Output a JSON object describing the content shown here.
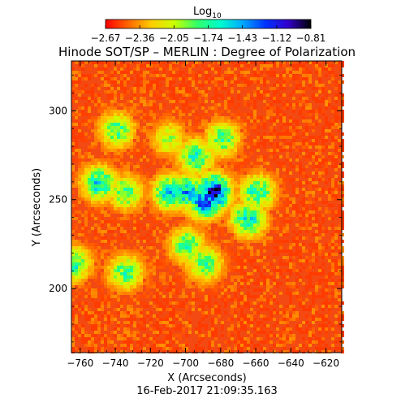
{
  "colorbar": {
    "label": "Log",
    "label_subscript": "10",
    "tick_labels": [
      "-2.67",
      "-2.36",
      "-2.05",
      "-1.74",
      "-1.43",
      "-1.12",
      "-0.81"
    ],
    "range": [
      -2.67,
      -0.81
    ],
    "colormap": [
      "#ff0000",
      "#ff6600",
      "#ffcc00",
      "#ccff00",
      "#33ff66",
      "#00ffcc",
      "#00aaff",
      "#0033ff",
      "#3300cc",
      "#000000"
    ]
  },
  "plot": {
    "title": "Hinode SOT/SP – MERLIN : Degree of Polarization",
    "xlabel": "X (Arcseconds)",
    "ylabel": "Y (Arcseconds)",
    "xlim": [
      -765,
      -611
    ],
    "ylim": [
      164,
      328
    ],
    "x_ticks": [
      -760,
      -740,
      -720,
      -700,
      -680,
      -660,
      -640,
      -620
    ],
    "y_ticks": [
      200,
      250,
      300
    ],
    "x_tick_labels": [
      "−760",
      "−740",
      "−720",
      "−700",
      "−680",
      "−660",
      "−640",
      "−620"
    ],
    "y_tick_labels": [
      "200",
      "250",
      "300"
    ],
    "timestamp": "16-Feb-2017 21:09:35.163",
    "background_level": -2.55,
    "features": [
      {
        "x": -685,
        "y": 255,
        "level": -1.0
      },
      {
        "x": -690,
        "y": 250,
        "level": -1.3
      },
      {
        "x": -700,
        "y": 255,
        "level": -1.5
      },
      {
        "x": -710,
        "y": 255,
        "level": -1.6
      },
      {
        "x": -695,
        "y": 275,
        "level": -1.7
      },
      {
        "x": -680,
        "y": 285,
        "level": -1.8
      },
      {
        "x": -700,
        "y": 225,
        "level": -1.75
      },
      {
        "x": -690,
        "y": 215,
        "level": -1.8
      },
      {
        "x": -750,
        "y": 260,
        "level": -1.6
      },
      {
        "x": -735,
        "y": 255,
        "level": -1.8
      },
      {
        "x": -665,
        "y": 240,
        "level": -1.6
      },
      {
        "x": -660,
        "y": 255,
        "level": -1.7
      },
      {
        "x": -740,
        "y": 290,
        "level": -1.8
      },
      {
        "x": -765,
        "y": 215,
        "level": -1.7
      },
      {
        "x": -735,
        "y": 210,
        "level": -1.8
      },
      {
        "x": -710,
        "y": 285,
        "level": -2.0
      }
    ]
  }
}
